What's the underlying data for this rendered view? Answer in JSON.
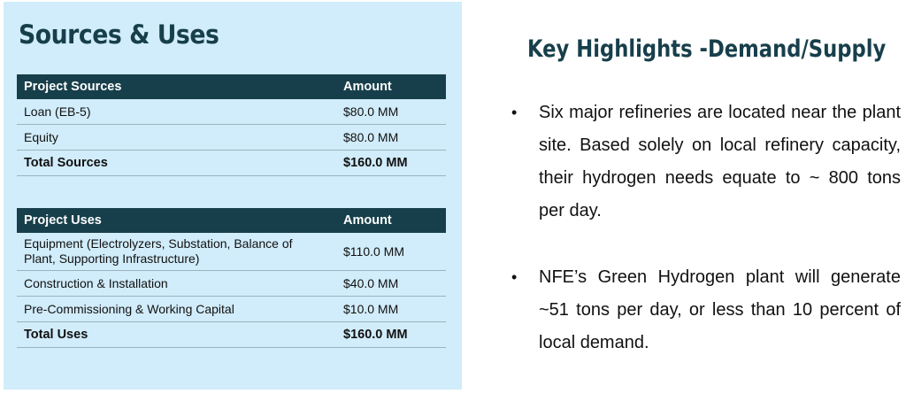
{
  "left": {
    "title": "Sources & Uses",
    "sources": {
      "headers": [
        "Project Sources",
        "Amount"
      ],
      "rows": [
        [
          "Loan (EB-5)",
          "$80.0 MM"
        ],
        [
          "Equity",
          "$80.0 MM"
        ]
      ],
      "total": [
        "Total Sources",
        "$160.0 MM"
      ]
    },
    "uses": {
      "headers": [
        "Project Uses",
        "Amount"
      ],
      "rows": [
        [
          "Equipment (Electrolyzers, Substation, Balance of Plant, Supporting Infrastructure)",
          "$110.0 MM"
        ],
        [
          "Construction & Installation",
          "$40.0 MM"
        ],
        [
          "Pre-Commissioning & Working Capital",
          "$10.0 MM"
        ]
      ],
      "total": [
        "Total Uses",
        "$160.0 MM"
      ]
    }
  },
  "right": {
    "title": "Key Highlights -Demand/Supply",
    "bullet_glyph": "•",
    "bullets": [
      "Six major refineries are located near the plant site. Based solely on local refinery capacity, their hydrogen needs equate to ~ 800 tons per day.",
      "NFE’s Green Hydrogen plant will generate ~51 tons per day, or less than 10 percent of local demand."
    ]
  }
}
